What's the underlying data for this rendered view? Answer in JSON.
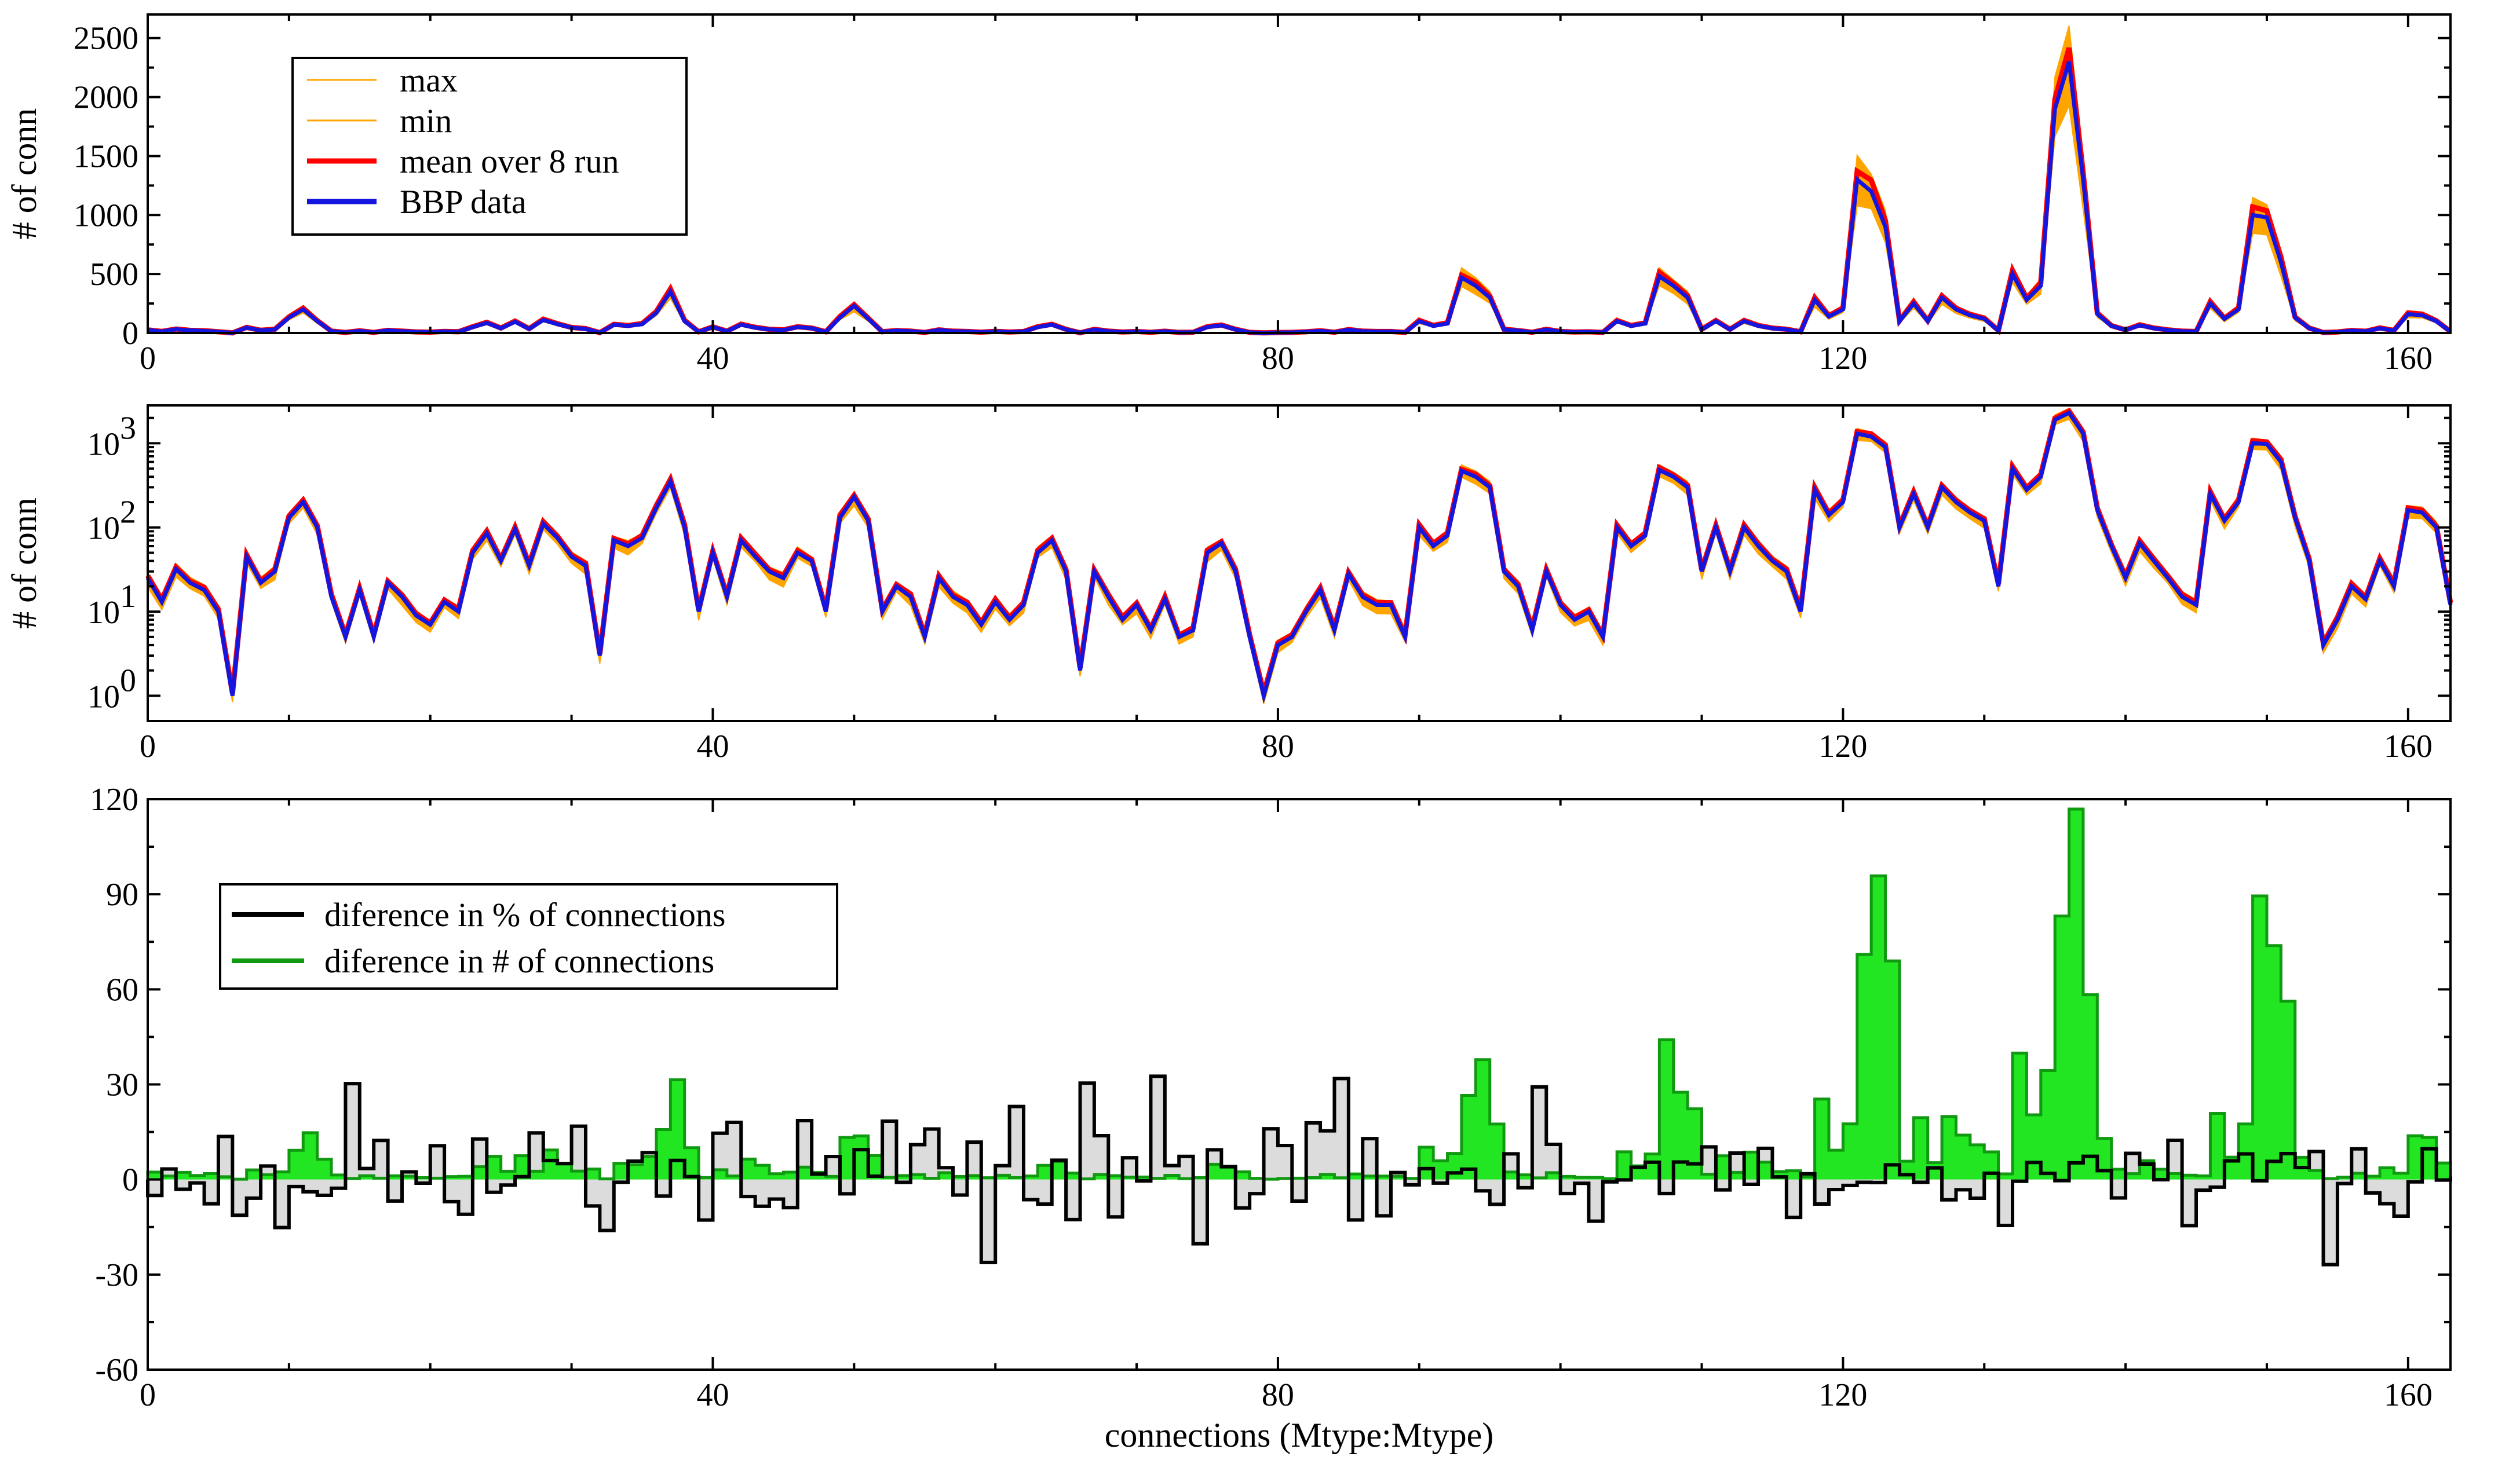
{
  "chart_data": [
    {
      "type": "line",
      "ylabel": "# of conn",
      "xlabel": "",
      "xlim": [
        0,
        163
      ],
      "ylim": [
        0,
        2700
      ],
      "yscale": "linear",
      "xticks": [
        0,
        40,
        80,
        120,
        160
      ],
      "yticks": [
        0,
        500,
        1000,
        1500,
        2000,
        2500
      ],
      "legend_position": "top-left",
      "legend": [
        {
          "label": "max",
          "color": "#FFA500"
        },
        {
          "label": "min",
          "color": "#FFA500"
        },
        {
          "label": "mean over 8 run",
          "color": "#FF0000"
        },
        {
          "label": "BBP data",
          "color": "#1515E0"
        }
      ],
      "series": [
        {
          "name": "BBP data",
          "color": "#1515E0",
          "uses": "connections"
        }
      ]
    },
    {
      "type": "line",
      "ylabel": "# of conn",
      "xlabel": "",
      "xlim": [
        0,
        163
      ],
      "ylim_log10": [
        -0.3,
        3.45
      ],
      "yscale": "log",
      "xticks": [
        0,
        40,
        80,
        120,
        160
      ],
      "ytick_labels": [
        {
          "base": "10",
          "exp": "0"
        },
        {
          "base": "10",
          "exp": "1"
        },
        {
          "base": "10",
          "exp": "2"
        },
        {
          "base": "10",
          "exp": "3"
        }
      ],
      "series": [
        {
          "name": "BBP data",
          "color": "#1515E0",
          "uses": "connections"
        }
      ]
    },
    {
      "type": "bar",
      "ylabel": "",
      "xlabel": "connections (Mtype:Mtype)",
      "xlim": [
        0,
        163
      ],
      "ylim": [
        -60,
        120
      ],
      "xticks": [
        0,
        40,
        80,
        120,
        160
      ],
      "yticks": [
        -60,
        -30,
        0,
        30,
        60,
        90,
        120
      ],
      "legend_position": "center-left",
      "legend": [
        {
          "label": "diference in % of connections",
          "color": "#000000"
        },
        {
          "label": "diference in # of connections",
          "color": "#119911"
        }
      ]
    }
  ],
  "connections": [
    25,
    13,
    32,
    22,
    18,
    10,
    1,
    45,
    22,
    30,
    130,
    200,
    100,
    15,
    5,
    18,
    5,
    22,
    15,
    9,
    7,
    13,
    10,
    50,
    85,
    40,
    95,
    35,
    110,
    75,
    45,
    35,
    3,
    70,
    60,
    75,
    170,
    350,
    100,
    10,
    50,
    15,
    70,
    45,
    30,
    25,
    50,
    40,
    10,
    130,
    230,
    120,
    10,
    20,
    15,
    5,
    25,
    15,
    12,
    7,
    13,
    8,
    12,
    50,
    70,
    30,
    2,
    30,
    15,
    8,
    12,
    6,
    14,
    5,
    6,
    50,
    65,
    30,
    5,
    1,
    4,
    5,
    10,
    18,
    6,
    28,
    15,
    12,
    12,
    5,
    100,
    60,
    80,
    470,
    400,
    300,
    30,
    20,
    6,
    30,
    12,
    8,
    10,
    5,
    100,
    60,
    80,
    480,
    400,
    300,
    30,
    100,
    30,
    100,
    60,
    40,
    30,
    10,
    280,
    140,
    200,
    1300,
    1200,
    900,
    100,
    250,
    100,
    300,
    200,
    150,
    120,
    20,
    500,
    280,
    400,
    1900,
    2300,
    1300,
    160,
    60,
    25,
    65,
    40,
    25,
    15,
    12,
    250,
    120,
    200,
    1000,
    980,
    600,
    130,
    40,
    4,
    8,
    20,
    14,
    40,
    20,
    160,
    150,
    100,
    12
  ],
  "colors": {
    "max_min_band": "#FFA500",
    "mean": "#FF0000",
    "bbp": "#1515E0",
    "pct_line": "#000000",
    "pct_fill": "#DCDCDC",
    "num_line": "#119911",
    "num_fill": "#22E622"
  }
}
